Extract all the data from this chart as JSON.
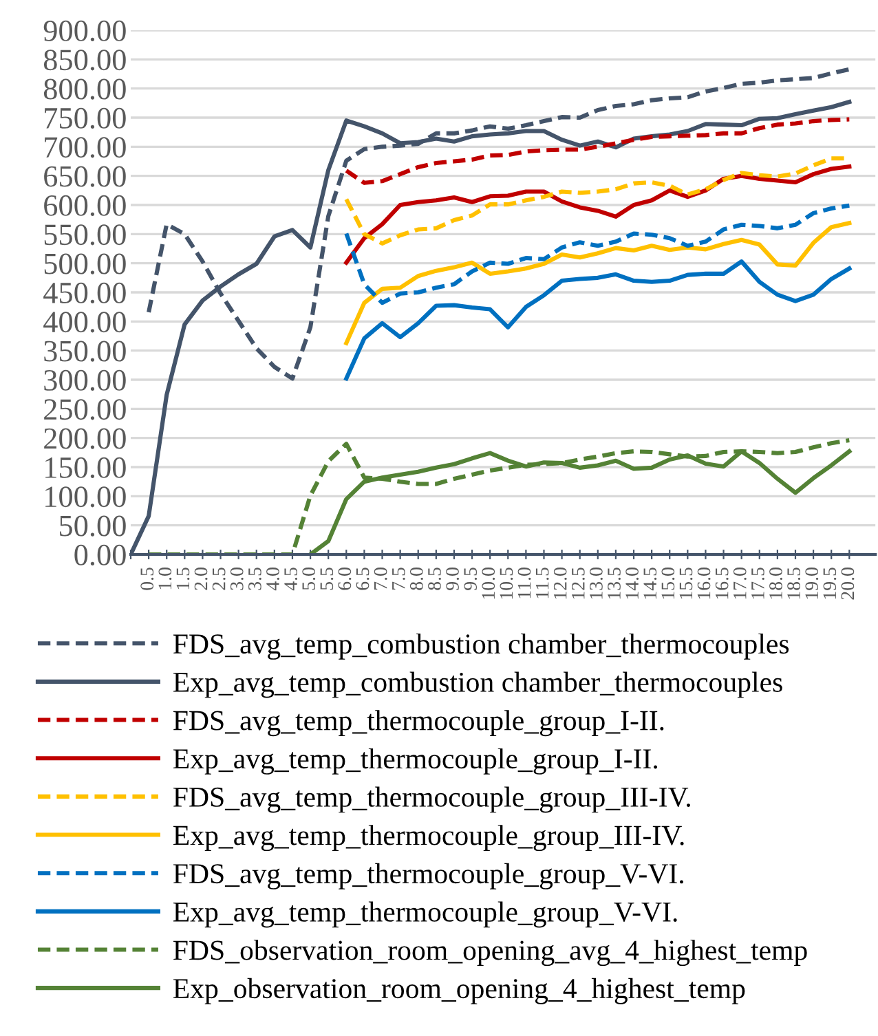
{
  "chart_data": {
    "type": "line",
    "categories": [
      null,
      "0.5",
      "1.0",
      "1.5",
      "2.0",
      "2.5",
      "3.0",
      "3.5",
      "4.0",
      "4.5",
      "5.0",
      "5.5",
      "6.0",
      "6.5",
      "7.0",
      "7.5",
      "8.0",
      "8.5",
      "9.0",
      "9.5",
      "10.0",
      "10.5",
      "11.0",
      "11.5",
      "12.0",
      "12.5",
      "13.0",
      "13.5",
      "14.0",
      "14.5",
      "15.0",
      "15.5",
      "16.0",
      "16.5",
      "17.0",
      "17.5",
      "18.0",
      "18.5",
      "19.0",
      "19.5",
      "20.0"
    ],
    "series": [
      {
        "name": "FDS_avg_temp_combustion chamber_thermocouples",
        "color": "#44546a",
        "line_style": "dashed",
        "values": [
          null,
          416,
          567,
          550,
          503,
          448,
          401,
          354,
          322,
          302,
          390,
          581,
          676,
          696,
          700,
          702,
          705,
          723,
          723,
          728,
          735,
          731,
          737,
          744,
          751,
          750,
          763,
          770,
          773,
          780,
          783,
          785,
          795,
          801,
          808,
          810,
          814,
          816,
          818,
          826,
          833
        ]
      },
      {
        "name": "Exp_avg_temp_combustion chamber_thermocouples",
        "color": "#44546a",
        "line_style": "solid",
        "values": [
          0,
          66,
          274,
          395,
          436,
          460,
          481,
          499,
          546,
          557,
          527,
          660,
          745,
          735,
          723,
          706,
          708,
          714,
          709,
          718,
          721,
          723,
          727,
          727,
          712,
          702,
          709,
          699,
          714,
          718,
          721,
          727,
          739,
          738,
          737,
          748,
          749,
          756,
          762,
          768,
          777
        ]
      },
      {
        "name": "FDS_avg_temp_thermocouple_group_I-II.",
        "color": "#c00000",
        "line_style": "dashed",
        "values": [
          null,
          null,
          null,
          null,
          null,
          null,
          null,
          null,
          null,
          null,
          null,
          null,
          659,
          638,
          641,
          653,
          665,
          672,
          675,
          678,
          685,
          686,
          692,
          694,
          695,
          695,
          700,
          706,
          712,
          717,
          718,
          719,
          720,
          723,
          723,
          732,
          738,
          740,
          744,
          746,
          747
        ]
      },
      {
        "name": "Exp_avg_temp_thermocouple_group_I-II.",
        "color": "#c00000",
        "line_style": "solid",
        "values": [
          null,
          null,
          null,
          null,
          null,
          null,
          null,
          null,
          null,
          null,
          null,
          null,
          501,
          543,
          567,
          600,
          605,
          608,
          613,
          605,
          615,
          616,
          623,
          623,
          606,
          596,
          590,
          580,
          600,
          608,
          625,
          614,
          625,
          645,
          650,
          645,
          642,
          639,
          653,
          662,
          666
        ]
      },
      {
        "name": "FDS_avg_temp_thermocouple_group_III-IV.",
        "color": "#ffc000",
        "line_style": "dashed",
        "values": [
          null,
          null,
          null,
          null,
          null,
          null,
          null,
          null,
          null,
          null,
          null,
          null,
          610,
          550,
          534,
          548,
          558,
          560,
          574,
          582,
          601,
          601,
          608,
          614,
          623,
          621,
          623,
          627,
          637,
          639,
          633,
          618,
          627,
          643,
          655,
          651,
          649,
          654,
          668,
          680,
          680
        ]
      },
      {
        "name": "Exp_avg_temp_thermocouple_group_III-IV.",
        "color": "#ffc000",
        "line_style": "solid",
        "values": [
          null,
          null,
          null,
          null,
          null,
          null,
          null,
          null,
          null,
          null,
          null,
          null,
          363,
          432,
          456,
          458,
          478,
          487,
          493,
          501,
          482,
          486,
          491,
          499,
          515,
          510,
          517,
          526,
          522,
          530,
          523,
          527,
          524,
          533,
          540,
          532,
          498,
          496,
          535,
          562,
          569
        ]
      },
      {
        "name": "FDS_avg_temp_thermocouple_group_V-VI.",
        "color": "#0070c0",
        "line_style": "dashed",
        "values": [
          null,
          null,
          null,
          null,
          null,
          null,
          null,
          null,
          null,
          null,
          null,
          null,
          551,
          464,
          432,
          448,
          450,
          458,
          464,
          486,
          501,
          499,
          509,
          507,
          527,
          536,
          530,
          537,
          551,
          549,
          543,
          530,
          537,
          558,
          566,
          564,
          560,
          566,
          586,
          594,
          599
        ]
      },
      {
        "name": "Exp_avg_temp_thermocouple_group_V-VI.",
        "color": "#0070c0",
        "line_style": "solid",
        "values": [
          null,
          null,
          null,
          null,
          null,
          null,
          null,
          null,
          null,
          null,
          null,
          null,
          302,
          371,
          397,
          373,
          397,
          427,
          428,
          424,
          421,
          390,
          425,
          445,
          470,
          473,
          475,
          481,
          470,
          468,
          470,
          480,
          482,
          482,
          503,
          468,
          446,
          435,
          446,
          473,
          491
        ]
      },
      {
        "name": "FDS_observation_room_opening_avg_4_highest_temp",
        "color": "#548235",
        "line_style": "dashed",
        "values": [
          null,
          0,
          0,
          0,
          0,
          0,
          0,
          0,
          0,
          0,
          101,
          160,
          190,
          132,
          130,
          125,
          121,
          121,
          130,
          137,
          144,
          149,
          154,
          155,
          157,
          163,
          168,
          174,
          177,
          176,
          172,
          168,
          169,
          176,
          177,
          176,
          174,
          176,
          184,
          191,
          196
        ]
      },
      {
        "name": "Exp_observation_room_opening_4_highest_temp",
        "color": "#548235",
        "line_style": "solid",
        "values": [
          null,
          null,
          null,
          null,
          null,
          null,
          null,
          null,
          null,
          null,
          0,
          23,
          95,
          125,
          132,
          137,
          142,
          149,
          155,
          165,
          174,
          161,
          151,
          158,
          157,
          149,
          153,
          161,
          147,
          149,
          163,
          170,
          156,
          151,
          177,
          157,
          130,
          106,
          131,
          153,
          177
        ]
      }
    ],
    "ylim": [
      0,
      900
    ],
    "yticks": [
      {
        "value": 0,
        "label": "0.00"
      },
      {
        "value": 50,
        "label": "50.00"
      },
      {
        "value": 100,
        "label": "100.00"
      },
      {
        "value": 150,
        "label": "150.00"
      },
      {
        "value": 200,
        "label": "200.00"
      },
      {
        "value": 250,
        "label": "250.00"
      },
      {
        "value": 300,
        "label": "300.00"
      },
      {
        "value": 350,
        "label": "350.00"
      },
      {
        "value": 400,
        "label": "400.00"
      },
      {
        "value": 450,
        "label": "450.00"
      },
      {
        "value": 500,
        "label": "500.00"
      },
      {
        "value": 550,
        "label": "550.00"
      },
      {
        "value": 600,
        "label": "600.00"
      },
      {
        "value": 650,
        "label": "650.00"
      },
      {
        "value": 700,
        "label": "700.00"
      },
      {
        "value": 750,
        "label": "750.00"
      },
      {
        "value": 800,
        "label": "800.00"
      },
      {
        "value": 850,
        "label": "850.00"
      },
      {
        "value": 900,
        "label": "900.00"
      }
    ],
    "grid": "y",
    "legend": "bottom",
    "marker": "none"
  }
}
